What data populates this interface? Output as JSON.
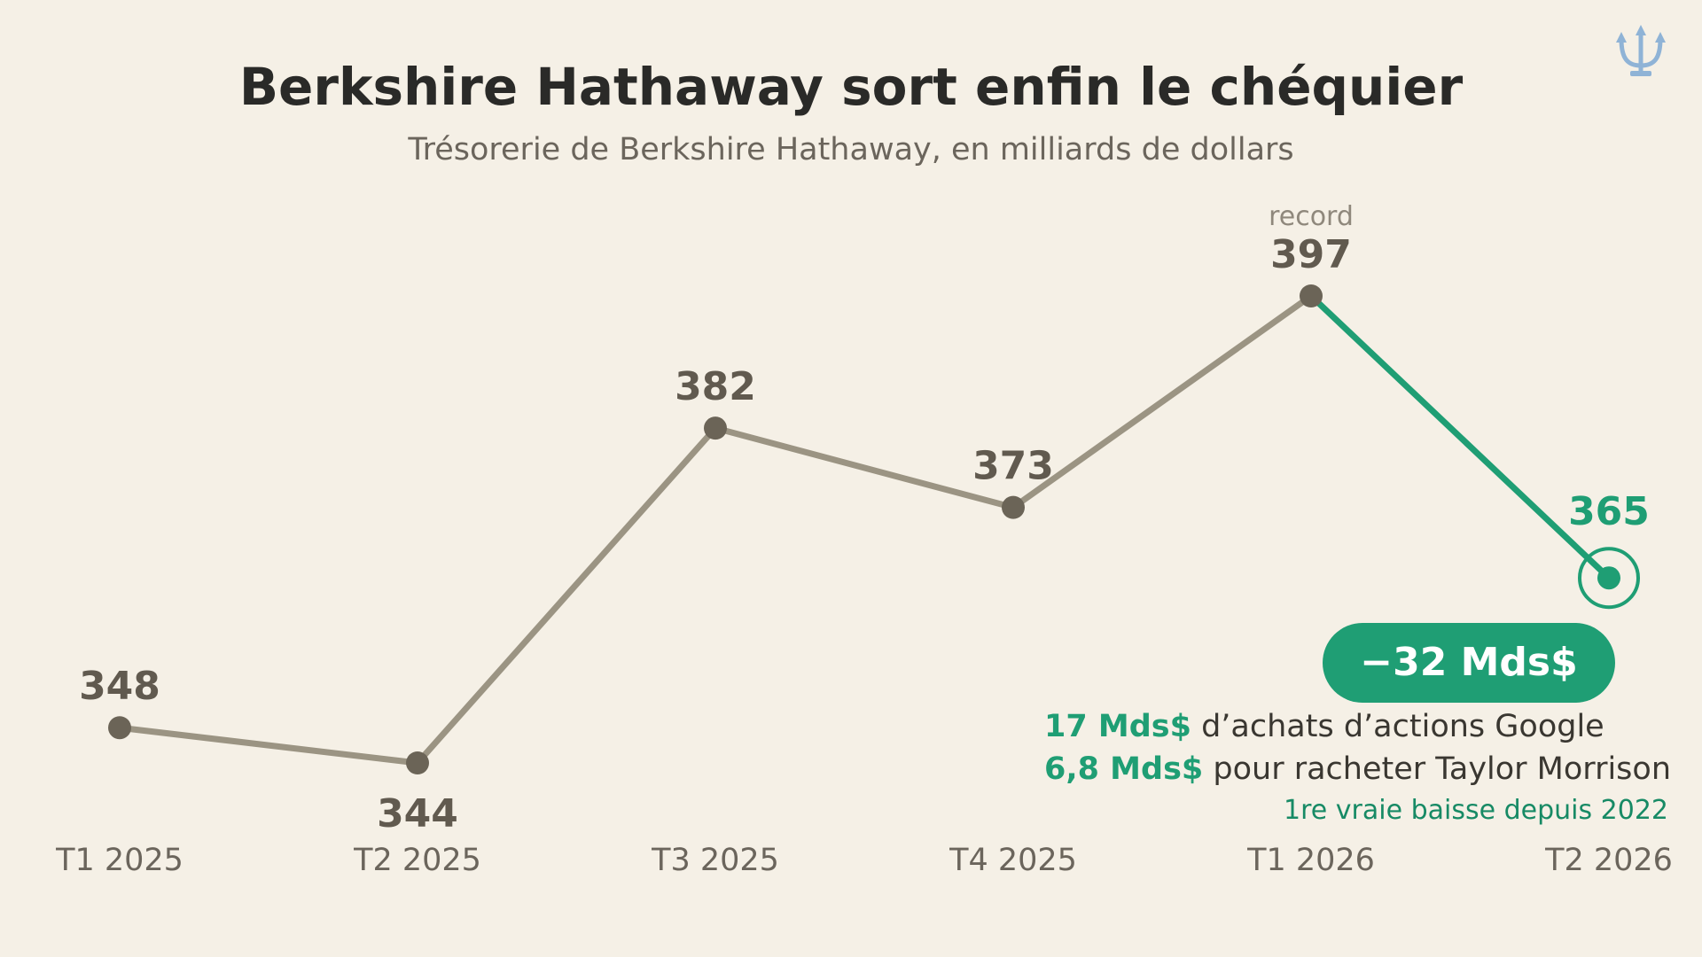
{
  "title": "Berkshire Hathaway sort enfin le chéquier",
  "subtitle": "Trésorerie de Berkshire Hathaway, en milliards de dollars",
  "logo": {
    "icon": "trident-icon",
    "color": "#8fb3d6"
  },
  "colors": {
    "background": "#f5f0e6",
    "line": "#9b9483",
    "point": "#6b6457",
    "accent": "#1f9e74",
    "value_text": "#615a4f"
  },
  "chart_data": {
    "type": "line",
    "title": "Berkshire Hathaway sort enfin le chéquier",
    "subtitle": "Trésorerie de Berkshire Hathaway, en milliards de dollars",
    "xlabel": "",
    "ylabel": "",
    "categories": [
      "T1 2025",
      "T2 2025",
      "T3 2025",
      "T4 2025",
      "T1 2026",
      "T2 2026"
    ],
    "values": [
      348,
      344,
      382,
      373,
      397,
      365
    ],
    "value_labels": [
      "348",
      "344",
      "382",
      "373",
      "397",
      "365"
    ],
    "ylim": [
      330,
      400
    ],
    "grid": false,
    "highlight_segment": {
      "from": "T1 2026",
      "to": "T2 2026"
    },
    "annotations": {
      "record_label": "record",
      "badge": "−32 Mds$",
      "line1_strong": "17 Mds$",
      "line1_text": " d’achats d’actions Google",
      "line2_strong": "6,8 Mds$",
      "line2_text": " pour racheter Taylor Morrison",
      "footnote": "1re vraie baisse depuis 2022"
    }
  }
}
